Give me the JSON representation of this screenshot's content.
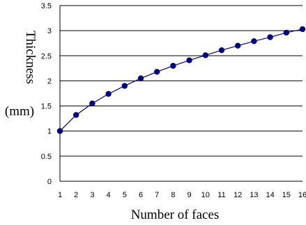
{
  "chart_data": {
    "type": "line",
    "xlabel": "Number of faces",
    "ylabel_line1": "Thickness",
    "ylabel_line2": "(mm)",
    "x": [
      1,
      2,
      3,
      4,
      5,
      6,
      7,
      8,
      9,
      10,
      11,
      12,
      13,
      14,
      15,
      16
    ],
    "series": [
      {
        "values": [
          1.0,
          1.32,
          1.55,
          1.74,
          1.9,
          2.05,
          2.18,
          2.3,
          2.41,
          2.51,
          2.61,
          2.7,
          2.79,
          2.87,
          2.96,
          3.03
        ]
      }
    ],
    "xlim": [
      1,
      16
    ],
    "ylim": [
      0,
      3.5
    ],
    "y_ticks": [
      "0",
      "0.5",
      "1",
      "1.5",
      "2",
      "2.5",
      "3",
      "3.5"
    ],
    "x_ticks": [
      "1",
      "2",
      "3",
      "4",
      "5",
      "6",
      "7",
      "8",
      "9",
      "10",
      "11",
      "12",
      "13",
      "14",
      "15",
      "16"
    ],
    "grid": "horizontal",
    "line_color": "#000080",
    "marker_color": "#000080",
    "grid_color": "#000000"
  }
}
